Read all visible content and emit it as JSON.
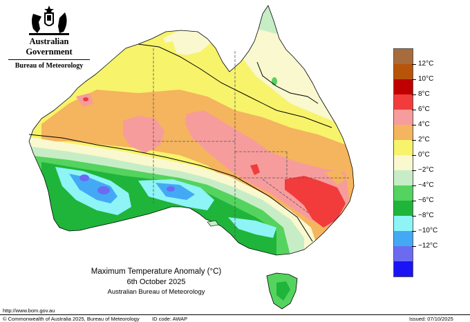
{
  "header": {
    "government": "Australian Government",
    "bureau": "Bureau of Meteorology"
  },
  "legend": {
    "items": [
      {
        "label": "12°C",
        "color": "#b7540a"
      },
      {
        "label": "10°C",
        "color": "#c00000"
      },
      {
        "label": "8°C",
        "color": "#f23b3b"
      },
      {
        "label": "6°C",
        "color": "#f79c9c"
      },
      {
        "label": "4°C",
        "color": "#f5b45e"
      },
      {
        "label": "2°C",
        "color": "#f7f36b"
      },
      {
        "label": "0°C",
        "color": "#f9f8cf"
      },
      {
        "label": "−2°C",
        "color": "#c7edc6"
      },
      {
        "label": "−4°C",
        "color": "#54d35e"
      },
      {
        "label": "−6°C",
        "color": "#1fb53a"
      },
      {
        "label": "−8°C",
        "color": "#8ef4f6"
      },
      {
        "label": "−10°C",
        "color": "#44a9f5"
      },
      {
        "label": "−12°C",
        "color": "#6b6bf2"
      }
    ],
    "top_color": "#a86b3c",
    "bottom_color": "#1a14f5"
  },
  "caption": {
    "title": "Maximum Temperature Anomaly (°C)",
    "date": "6th October 2025",
    "org": "Australian Bureau of Meteorology"
  },
  "footer": {
    "url": "http://www.bom.gov.au",
    "copyright": "© Commonwealth of Australia 2025, Bureau of Meteorology",
    "id_code": "ID code: AWAP",
    "issued": "Issued: 07/10/2025"
  }
}
